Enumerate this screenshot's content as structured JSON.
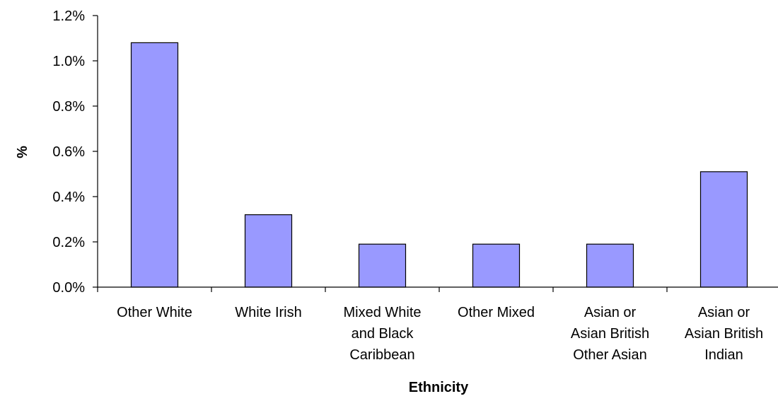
{
  "chart_data": {
    "type": "bar",
    "title": "",
    "xlabel": "Ethnicity",
    "ylabel": "%",
    "categories": [
      [
        "Other White"
      ],
      [
        "White Irish"
      ],
      [
        "Mixed White",
        "and Black",
        "Caribbean"
      ],
      [
        "Other Mixed"
      ],
      [
        "Asian or",
        "Asian British",
        "Other Asian"
      ],
      [
        "Asian or",
        "Asian British",
        "Indian"
      ]
    ],
    "values": [
      1.08,
      0.32,
      0.19,
      0.19,
      0.19,
      0.51
    ],
    "ylim": [
      0,
      1.2
    ],
    "yticks": [
      "0.0%",
      "0.2%",
      "0.4%",
      "0.6%",
      "0.8%",
      "1.0%",
      "1.2%"
    ],
    "grid": false,
    "legend": "none",
    "colors": {
      "bar_fill": "#9999ff",
      "bar_stroke": "#000000",
      "axis": "#000000"
    }
  }
}
